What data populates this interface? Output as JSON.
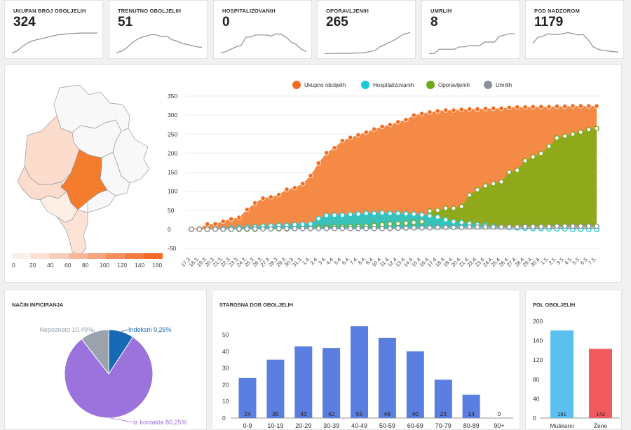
{
  "kpis": [
    {
      "title": "UKUPAN BROJ OBOLJELIH",
      "value": "324",
      "spark": [
        0.05,
        0.12,
        0.3,
        0.45,
        0.55,
        0.6,
        0.65,
        0.7,
        0.75,
        0.8,
        0.82,
        0.85,
        0.86,
        0.87,
        0.88,
        0.88,
        0.88,
        0.88
      ]
    },
    {
      "title": "TRENUTNO OBOLJELIH",
      "value": "51",
      "spark": [
        0.05,
        0.12,
        0.25,
        0.45,
        0.6,
        0.7,
        0.75,
        0.82,
        0.8,
        0.72,
        0.75,
        0.6,
        0.55,
        0.45,
        0.4,
        0.35,
        0.3,
        0.28
      ]
    },
    {
      "title": "HOSPITALIZOVANIH",
      "value": "0",
      "spark": [
        0.05,
        0.1,
        0.2,
        0.3,
        0.35,
        0.7,
        0.72,
        0.8,
        0.8,
        0.8,
        0.75,
        0.85,
        0.82,
        0.7,
        0.5,
        0.4,
        0.2,
        0.1
      ]
    },
    {
      "title": "OPORAVLJENIH",
      "value": "265",
      "spark": [
        0.02,
        0.02,
        0.02,
        0.03,
        0.03,
        0.03,
        0.04,
        0.05,
        0.06,
        0.1,
        0.15,
        0.3,
        0.4,
        0.5,
        0.6,
        0.75,
        0.85,
        0.9
      ]
    },
    {
      "title": "UMRLIH",
      "value": "8",
      "spark": [
        0.02,
        0.02,
        0.2,
        0.2,
        0.2,
        0.2,
        0.3,
        0.3,
        0.35,
        0.35,
        0.35,
        0.5,
        0.5,
        0.5,
        0.75,
        0.8,
        0.85,
        0.85
      ]
    },
    {
      "title": "POD NADZOROM",
      "value": "1179",
      "spark": [
        0.45,
        0.7,
        0.75,
        0.85,
        0.82,
        0.82,
        0.85,
        0.9,
        0.85,
        0.8,
        0.82,
        0.6,
        0.3,
        0.2,
        0.15,
        0.12,
        0.1,
        0.08
      ]
    }
  ],
  "map_legend": {
    "ticks": [
      "0",
      "20",
      "40",
      "60",
      "80",
      "100",
      "120",
      "140",
      "160"
    ],
    "colors": [
      "#fdf0ea",
      "#fbe0d3",
      "#f9cdb7",
      "#f7b89a",
      "#f6a47c",
      "#f5905e",
      "#f47c40",
      "#f36a25"
    ]
  },
  "timeline": {
    "legend": [
      {
        "label": "Ukupno oboljelih",
        "color": "#f26d20"
      },
      {
        "label": "Hospitalizovanih",
        "color": "#1cc9d6"
      },
      {
        "label": "Oporavljenih",
        "color": "#6aaa14"
      },
      {
        "label": "Umrlih",
        "color": "#8b909a"
      }
    ],
    "y_ticks": [
      "350",
      "300",
      "250",
      "200",
      "150",
      "100",
      "50",
      "0",
      "-50"
    ],
    "x_labels": [
      "17.3.",
      "18.3.",
      "19.3.",
      "20.3.",
      "21.3.",
      "22.3.",
      "23.3.",
      "24.3.",
      "25.3.",
      "26.3.",
      "27.3.",
      "28.3.",
      "29.3.",
      "30.3.",
      "31.3.",
      "1.4.",
      "2.4.",
      "3.4.",
      "4.4.",
      "5.4.",
      "6.4.",
      "7.4.",
      "8.4.",
      "9.4.",
      "10.4.",
      "11.4.",
      "12.4.",
      "13.4.",
      "14.4.",
      "15.4.",
      "16.4.",
      "17.4.",
      "18.4.",
      "19.4.",
      "20.4.",
      "21.4.",
      "22.4.",
      "23.4.",
      "24.4.",
      "25.4.",
      "26.4.",
      "27.4.",
      "28.4.",
      "29.4.",
      "30.4.",
      "1.5.",
      "2.5.",
      "3.5.",
      "4.5.",
      "5.5.",
      "6.5.",
      "7.5."
    ]
  },
  "chart_data": [
    {
      "type": "area",
      "title": "",
      "ylim": [
        -50,
        350
      ],
      "categories": [
        "17.3.",
        "18.3.",
        "19.3.",
        "20.3.",
        "21.3.",
        "22.3.",
        "23.3.",
        "24.3.",
        "25.3.",
        "26.3.",
        "27.3.",
        "28.3.",
        "29.3.",
        "30.3.",
        "31.3.",
        "1.4.",
        "2.4.",
        "3.4.",
        "4.4.",
        "5.4.",
        "6.4.",
        "7.4.",
        "8.4.",
        "9.4.",
        "10.4.",
        "11.4.",
        "12.4.",
        "13.4.",
        "14.4.",
        "15.4.",
        "16.4.",
        "17.4.",
        "18.4.",
        "19.4.",
        "20.4.",
        "21.4.",
        "22.4.",
        "23.4.",
        "24.4.",
        "25.4.",
        "26.4.",
        "27.4.",
        "28.4.",
        "29.4.",
        "30.4.",
        "1.5.",
        "2.5.",
        "3.5.",
        "4.5.",
        "5.5.",
        "6.5.",
        "7.5."
      ],
      "series": [
        {
          "name": "Ukupno oboljelih",
          "values": [
            2,
            3,
            14,
            14,
            21,
            27,
            31,
            52,
            69,
            82,
            85,
            91,
            105,
            109,
            120,
            141,
            174,
            201,
            214,
            233,
            241,
            248,
            255,
            263,
            270,
            275,
            282,
            288,
            300,
            304,
            308,
            311,
            313,
            313,
            315,
            316,
            316,
            317,
            318,
            318,
            320,
            321,
            321,
            322,
            322,
            322,
            323,
            323,
            324,
            324,
            324,
            324
          ]
        },
        {
          "name": "Hospitalizovanih",
          "values": [
            0,
            0,
            0,
            1,
            2,
            3,
            4,
            5,
            6,
            8,
            9,
            10,
            10,
            12,
            13,
            14,
            28,
            36,
            37,
            37,
            39,
            40,
            42,
            42,
            43,
            42,
            42,
            41,
            40,
            38,
            35,
            32,
            25,
            20,
            18,
            15,
            12,
            10,
            8,
            6,
            5,
            4,
            3,
            2,
            2,
            1,
            1,
            1,
            0,
            0,
            0,
            0
          ]
        },
        {
          "name": "Oporavljenih",
          "values": [
            0,
            0,
            0,
            0,
            0,
            0,
            0,
            0,
            0,
            1,
            1,
            1,
            1,
            2,
            3,
            4,
            5,
            5,
            6,
            6,
            7,
            7,
            8,
            10,
            12,
            14,
            15,
            16,
            18,
            20,
            48,
            50,
            55,
            55,
            60,
            90,
            104,
            114,
            120,
            125,
            150,
            155,
            180,
            190,
            199,
            218,
            240,
            245,
            250,
            255,
            262,
            265
          ]
        },
        {
          "name": "Umrlih",
          "values": [
            0,
            0,
            0,
            0,
            0,
            0,
            1,
            1,
            1,
            1,
            1,
            2,
            2,
            2,
            2,
            2,
            2,
            2,
            2,
            2,
            2,
            2,
            2,
            2,
            2,
            2,
            3,
            3,
            4,
            4,
            4,
            5,
            5,
            5,
            5,
            6,
            6,
            6,
            6,
            6,
            6,
            6,
            7,
            7,
            7,
            7,
            8,
            8,
            8,
            8,
            8,
            8
          ]
        }
      ]
    },
    {
      "type": "pie",
      "title": "NAČIN INFICIRANJA",
      "slices": [
        {
          "label": "Indeksni 9,26%",
          "value": 9.26,
          "color": "#1768b5"
        },
        {
          "label": "Iz kontakta 80,25%",
          "value": 80.25,
          "color": "#9c72dc"
        },
        {
          "label": "Nepoznato 10,49%",
          "value": 10.49,
          "color": "#9aa3ad"
        }
      ]
    },
    {
      "type": "bar",
      "title": "STAROSNA DOB OBOLJELIH",
      "categories": [
        "0-9",
        "10-19",
        "20-29",
        "30-39",
        "40-49",
        "50-59",
        "60-69",
        "70-79",
        "80-89",
        "90+"
      ],
      "values": [
        24,
        35,
        43,
        42,
        55,
        48,
        40,
        23,
        14,
        0
      ],
      "y_ticks": [
        "50",
        "40",
        "30",
        "20",
        "10",
        "0"
      ],
      "ylim": [
        0,
        58
      ],
      "color": "#5b7fe0"
    },
    {
      "type": "bar",
      "title": "POL OBOLJELIH",
      "categories": [
        "Muškarci",
        "Žene"
      ],
      "values": [
        181,
        143
      ],
      "y_ticks": [
        "200",
        "160",
        "120",
        "80",
        "40",
        "0"
      ],
      "ylim": [
        0,
        200
      ],
      "colors": [
        "#5bc0ef",
        "#f15a5f"
      ]
    }
  ]
}
